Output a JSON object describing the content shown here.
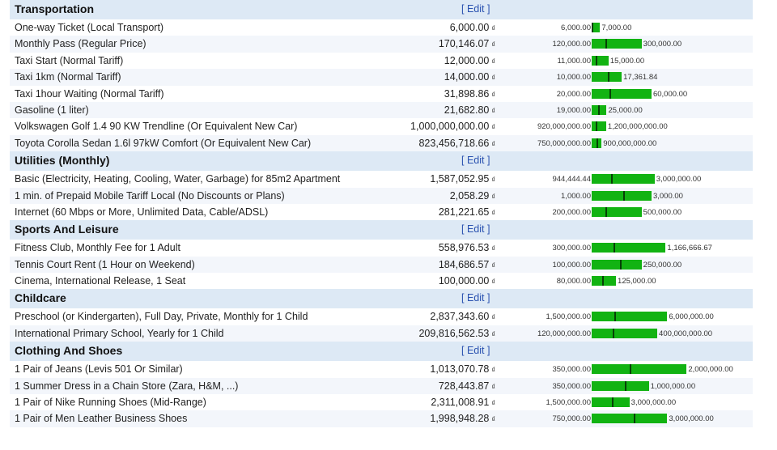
{
  "edit_label": "[ Edit ]",
  "currency_symbol": "₫",
  "colors": {
    "header_bg": "#dde9f5",
    "bar": "#12b312",
    "bar_marker": "#064006",
    "edit_link": "#2a52b0"
  },
  "categories": [
    {
      "name": "Transportation",
      "items": [
        {
          "name": "One-way Ticket (Local Transport)",
          "price": "6,000.00",
          "min": "6,000.00",
          "max": "7,000.00",
          "min_v": 6000,
          "max_v": 7000,
          "price_v": 6000
        },
        {
          "name": "Monthly Pass (Regular Price)",
          "price": "170,146.07",
          "min": "120,000.00",
          "max": "300,000.00",
          "min_v": 120000,
          "max_v": 300000,
          "price_v": 170146.07
        },
        {
          "name": "Taxi Start (Normal Tariff)",
          "price": "12,000.00",
          "min": "11,000.00",
          "max": "15,000.00",
          "min_v": 11000,
          "max_v": 15000,
          "price_v": 12000
        },
        {
          "name": "Taxi 1km (Normal Tariff)",
          "price": "14,000.00",
          "min": "10,000.00",
          "max": "17,361.84",
          "min_v": 10000,
          "max_v": 17361.84,
          "price_v": 14000
        },
        {
          "name": "Taxi 1hour Waiting (Normal Tariff)",
          "price": "31,898.86",
          "min": "20,000.00",
          "max": "60,000.00",
          "min_v": 20000,
          "max_v": 60000,
          "price_v": 31898.86
        },
        {
          "name": "Gasoline (1 liter)",
          "price": "21,682.80",
          "min": "19,000.00",
          "max": "25,000.00",
          "min_v": 19000,
          "max_v": 25000,
          "price_v": 21682.8
        },
        {
          "name": "Volkswagen Golf 1.4 90 KW Trendline (Or Equivalent New Car)",
          "price": "1,000,000,000.00",
          "min": "920,000,000.00",
          "max": "1,200,000,000.00",
          "min_v": 920000000,
          "max_v": 1200000000,
          "price_v": 1000000000
        },
        {
          "name": "Toyota Corolla Sedan 1.6l 97kW Comfort (Or Equivalent New Car)",
          "price": "823,456,718.66",
          "min": "750,000,000.00",
          "max": "900,000,000.00",
          "min_v": 750000000,
          "max_v": 900000000,
          "price_v": 823456718.66
        }
      ]
    },
    {
      "name": "Utilities (Monthly)",
      "items": [
        {
          "name": "Basic (Electricity, Heating, Cooling, Water, Garbage) for 85m2 Apartment",
          "price": "1,587,052.95",
          "min": "944,444.44",
          "max": "3,000,000.00",
          "min_v": 944444.44,
          "max_v": 3000000,
          "price_v": 1587052.95
        },
        {
          "name": "1 min. of Prepaid Mobile Tariff Local (No Discounts or Plans)",
          "price": "2,058.29",
          "min": "1,000.00",
          "max": "3,000.00",
          "min_v": 1000,
          "max_v": 3000,
          "price_v": 2058.29
        },
        {
          "name": "Internet (60 Mbps or More, Unlimited Data, Cable/ADSL)",
          "price": "281,221.65",
          "min": "200,000.00",
          "max": "500,000.00",
          "min_v": 200000,
          "max_v": 500000,
          "price_v": 281221.65
        }
      ]
    },
    {
      "name": "Sports And Leisure",
      "items": [
        {
          "name": "Fitness Club, Monthly Fee for 1 Adult",
          "price": "558,976.53",
          "min": "300,000.00",
          "max": "1,166,666.67",
          "min_v": 300000,
          "max_v": 1166666.67,
          "price_v": 558976.53
        },
        {
          "name": "Tennis Court Rent (1 Hour on Weekend)",
          "price": "184,686.57",
          "min": "100,000.00",
          "max": "250,000.00",
          "min_v": 100000,
          "max_v": 250000,
          "price_v": 184686.57
        },
        {
          "name": "Cinema, International Release, 1 Seat",
          "price": "100,000.00",
          "min": "80,000.00",
          "max": "125,000.00",
          "min_v": 80000,
          "max_v": 125000,
          "price_v": 100000
        }
      ]
    },
    {
      "name": "Childcare",
      "items": [
        {
          "name": "Preschool (or Kindergarten), Full Day, Private, Monthly for 1 Child",
          "price": "2,837,343.60",
          "min": "1,500,000.00",
          "max": "6,000,000.00",
          "min_v": 1500000,
          "max_v": 6000000,
          "price_v": 2837343.6
        },
        {
          "name": "International Primary School, Yearly for 1 Child",
          "price": "209,816,562.53",
          "min": "120,000,000.00",
          "max": "400,000,000.00",
          "min_v": 120000000,
          "max_v": 400000000,
          "price_v": 209816562.53
        }
      ]
    },
    {
      "name": "Clothing And Shoes",
      "items": [
        {
          "name": "1 Pair of Jeans (Levis 501 Or Similar)",
          "price": "1,013,070.78",
          "min": "350,000.00",
          "max": "2,000,000.00",
          "min_v": 350000,
          "max_v": 2000000,
          "price_v": 1013070.78
        },
        {
          "name": "1 Summer Dress in a Chain Store (Zara, H&M, ...)",
          "price": "728,443.87",
          "min": "350,000.00",
          "max": "1,000,000.00",
          "min_v": 350000,
          "max_v": 1000000,
          "price_v": 728443.87
        },
        {
          "name": "1 Pair of Nike Running Shoes (Mid-Range)",
          "price": "2,311,008.91",
          "min": "1,500,000.00",
          "max": "3,000,000.00",
          "min_v": 1500000,
          "max_v": 3000000,
          "price_v": 2311008.91
        },
        {
          "name": "1 Pair of Men Leather Business Shoes",
          "price": "1,998,948.28",
          "min": "750,000.00",
          "max": "3,000,000.00",
          "min_v": 750000,
          "max_v": 3000000,
          "price_v": 1998948.28
        }
      ]
    }
  ]
}
